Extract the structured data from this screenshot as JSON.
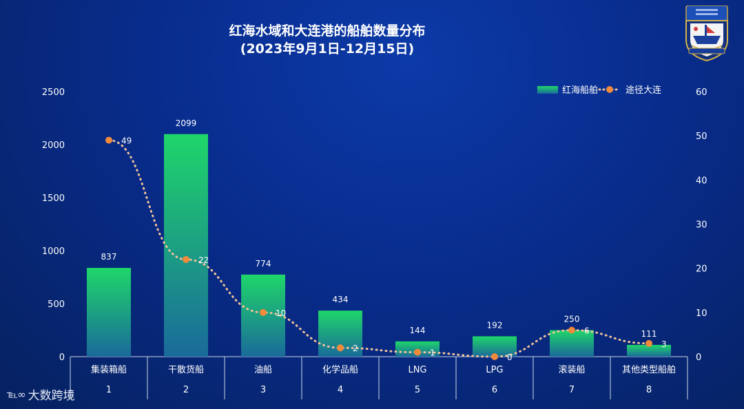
{
  "chart_data": {
    "type": "bar",
    "title_line1": "红海水域和大连港的船舶数量分布",
    "title_line2": "(2023年9月1日-12月15日)",
    "categories": [
      "集装箱船",
      "干散货船",
      "油船",
      "化学品船",
      "LNG",
      "LPG",
      "滚装船",
      "其他类型船舶"
    ],
    "category_index": [
      "1",
      "2",
      "3",
      "4",
      "5",
      "6",
      "7",
      "8"
    ],
    "series": [
      {
        "name": "红海船舶",
        "kind": "bar",
        "axis": "left",
        "values": [
          837,
          2099,
          774,
          434,
          144,
          192,
          250,
          111
        ],
        "color_top": "#1fd66a",
        "color_bottom": "#1a6a9a"
      },
      {
        "name": "途径大连",
        "kind": "line",
        "axis": "right",
        "values": [
          49,
          22,
          10,
          2,
          1,
          0,
          6,
          3
        ],
        "marker_color": "#f08a3c",
        "line_color": "#f2c29a"
      }
    ],
    "y_left": {
      "min": 0,
      "max": 2500,
      "ticks": [
        "0",
        "500",
        "1000",
        "1500",
        "2000",
        "2500"
      ]
    },
    "y_right": {
      "min": 0,
      "max": 60,
      "ticks": [
        "0",
        "10",
        "20",
        "30",
        "40",
        "50",
        "60"
      ]
    },
    "legend_position": "top-right"
  },
  "brand": {
    "mark": "℡∞",
    "name": "大数跨境"
  }
}
